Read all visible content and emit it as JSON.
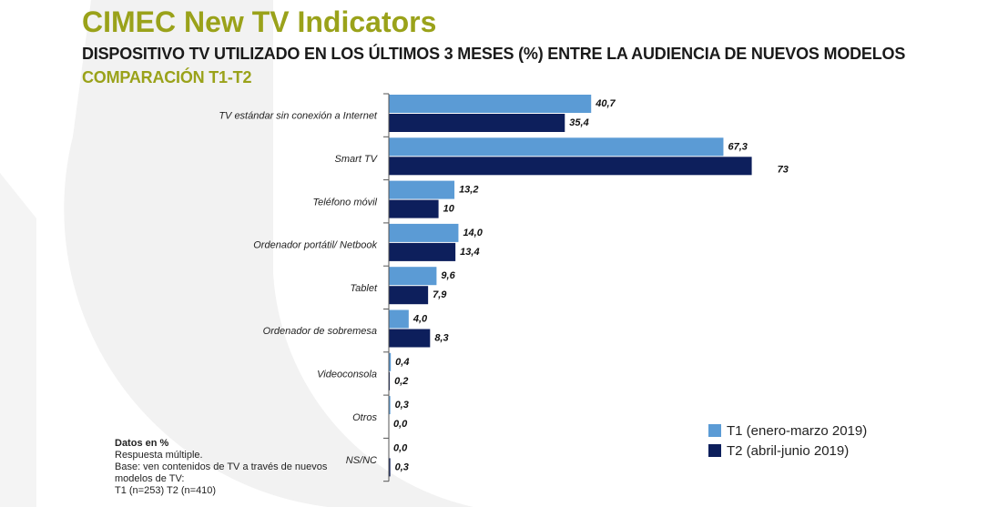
{
  "header": {
    "title": "CIMEC New TV Indicators",
    "subtitle": "DISPOSITIVO TV UTILIZADO EN LOS ÚLTIMOS 3 MESES (%) ENTRE LA AUDIENCIA DE NUEVOS MODELOS",
    "subtitle2": "COMPARACIÓN T1-T2"
  },
  "colors": {
    "title": "#9aa21a",
    "t1": "#5b9bd5",
    "t2": "#0d1f5c",
    "background_shape": "#f2f2f2"
  },
  "chart_data": {
    "type": "bar",
    "orientation": "horizontal",
    "categories": [
      "TV estándar sin conexión a Internet",
      "Smart TV",
      "Teléfono móvil",
      "Ordenador portátil/ Netbook",
      "Tablet",
      "Ordenador de sobremesa",
      "Videoconsola",
      "Otros",
      "NS/NC"
    ],
    "series": [
      {
        "name": "T1 (enero-marzo 2019)",
        "values": [
          40.7,
          67.3,
          13.2,
          14.0,
          9.6,
          4.0,
          0.4,
          0.3,
          0.0
        ],
        "labels": [
          "40,7",
          "67,3",
          "13,2",
          "14,0",
          "9,6",
          "4,0",
          "0,4",
          "0,3",
          "0,0"
        ]
      },
      {
        "name": "T2 (abril-junio 2019)",
        "values": [
          35.4,
          73,
          10,
          13.4,
          7.9,
          8.3,
          0.2,
          0.0,
          0.3
        ],
        "labels": [
          "35,4",
          "73",
          "10",
          "13,4",
          "7,9",
          "8,3",
          "0,2",
          "0,0",
          "0,3"
        ]
      }
    ],
    "legend_position": "bottom-right",
    "grid": false
  },
  "notes": {
    "heading": "Datos en %",
    "line1": "Respuesta múltiple.",
    "line2": "Base: ven contenidos de TV a través de nuevos modelos de TV:",
    "line3": "T1 (n=253) T2 (n=410)"
  }
}
